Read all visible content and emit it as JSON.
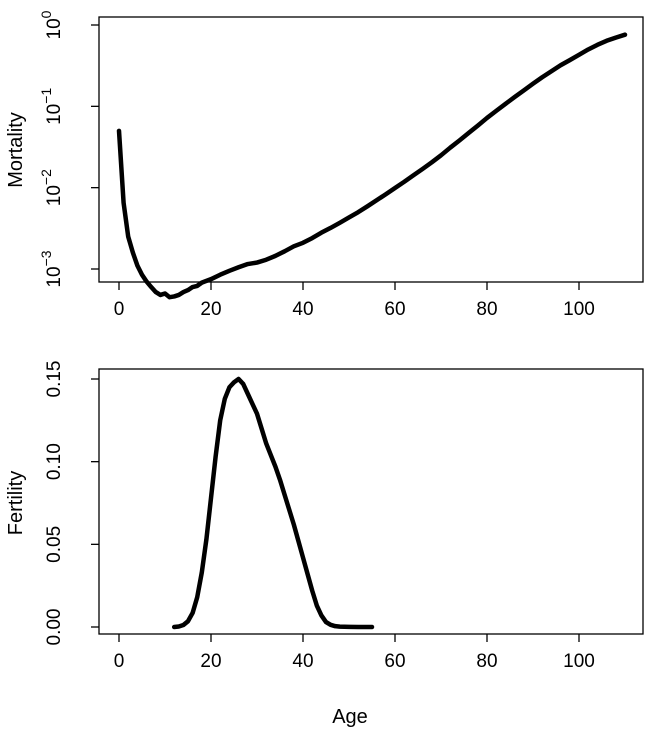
{
  "chart_data": [
    {
      "type": "line",
      "title": "",
      "xlabel": "",
      "ylabel": "Mortality",
      "xlim": [
        0,
        110
      ],
      "ylim": [
        0.00032,
        1
      ],
      "yscale": "log",
      "grid": false,
      "xticks": [
        0,
        20,
        40,
        60,
        80,
        100
      ],
      "xtick_labels": [
        "0",
        "20",
        "40",
        "60",
        "80",
        "100"
      ],
      "yticks": [
        0.001,
        0.01,
        0.1,
        1
      ],
      "ytick_labels": [
        {
          "base": "10",
          "exp": "−3"
        },
        {
          "base": "10",
          "exp": "−2"
        },
        {
          "base": "10",
          "exp": "−1"
        },
        {
          "base": "10",
          "exp": "0"
        }
      ],
      "series": [
        {
          "x": [
            0,
            1,
            2,
            3,
            4,
            5,
            6,
            7,
            8,
            9,
            10,
            11,
            12,
            13,
            14,
            15,
            16,
            17,
            18,
            20,
            22,
            24,
            26,
            28,
            30,
            32,
            34,
            36,
            38,
            40,
            42,
            44,
            46,
            48,
            50,
            52,
            54,
            56,
            58,
            60,
            62,
            64,
            66,
            68,
            70,
            72,
            74,
            76,
            78,
            80,
            82,
            84,
            86,
            88,
            90,
            92,
            94,
            96,
            98,
            100,
            102,
            104,
            106,
            108,
            110
          ],
          "y": [
            0.05,
            0.0065,
            0.0025,
            0.0016,
            0.0011,
            0.00085,
            0.0007,
            0.0006,
            0.00052,
            0.00048,
            0.0005,
            0.00045,
            0.00046,
            0.00048,
            0.00052,
            0.00055,
            0.0006,
            0.00062,
            0.00068,
            0.00075,
            0.00085,
            0.00095,
            0.00105,
            0.00115,
            0.0012,
            0.0013,
            0.00145,
            0.00165,
            0.0019,
            0.0021,
            0.0024,
            0.0028,
            0.0032,
            0.0037,
            0.0043,
            0.005,
            0.0059,
            0.007,
            0.0083,
            0.0099,
            0.0118,
            0.0142,
            0.017,
            0.0205,
            0.025,
            0.031,
            0.038,
            0.047,
            0.058,
            0.072,
            0.088,
            0.107,
            0.13,
            0.157,
            0.19,
            0.228,
            0.27,
            0.32,
            0.37,
            0.43,
            0.5,
            0.57,
            0.64,
            0.7,
            0.76
          ]
        }
      ]
    },
    {
      "type": "line",
      "title": "",
      "xlabel": "Age",
      "ylabel": "Fertility",
      "xlim": [
        0,
        110
      ],
      "ylim": [
        0,
        0.15
      ],
      "grid": false,
      "xticks": [
        0,
        20,
        40,
        60,
        80,
        100
      ],
      "xtick_labels": [
        "0",
        "20",
        "40",
        "60",
        "80",
        "100"
      ],
      "yticks": [
        0,
        0.05,
        0.1,
        0.15
      ],
      "ytick_labels": [
        "0.00",
        "0.05",
        "0.10",
        "0.15"
      ],
      "series": [
        {
          "x": [
            12,
            13,
            14,
            15,
            16,
            17,
            18,
            19,
            20,
            21,
            22,
            23,
            24,
            25,
            26,
            27,
            28,
            29,
            30,
            31,
            32,
            33,
            34,
            35,
            36,
            37,
            38,
            39,
            40,
            41,
            42,
            43,
            44,
            45,
            46,
            47,
            48,
            50,
            52,
            55
          ],
          "y": [
            0.0,
            0.0003,
            0.0012,
            0.0035,
            0.0085,
            0.018,
            0.033,
            0.053,
            0.078,
            0.103,
            0.125,
            0.138,
            0.145,
            0.148,
            0.15,
            0.147,
            0.141,
            0.135,
            0.129,
            0.12,
            0.111,
            0.104,
            0.097,
            0.089,
            0.08,
            0.071,
            0.062,
            0.052,
            0.042,
            0.032,
            0.022,
            0.013,
            0.007,
            0.003,
            0.0013,
            0.0005,
            0.0002,
            0.0001,
            0.0,
            0.0
          ]
        }
      ]
    }
  ]
}
